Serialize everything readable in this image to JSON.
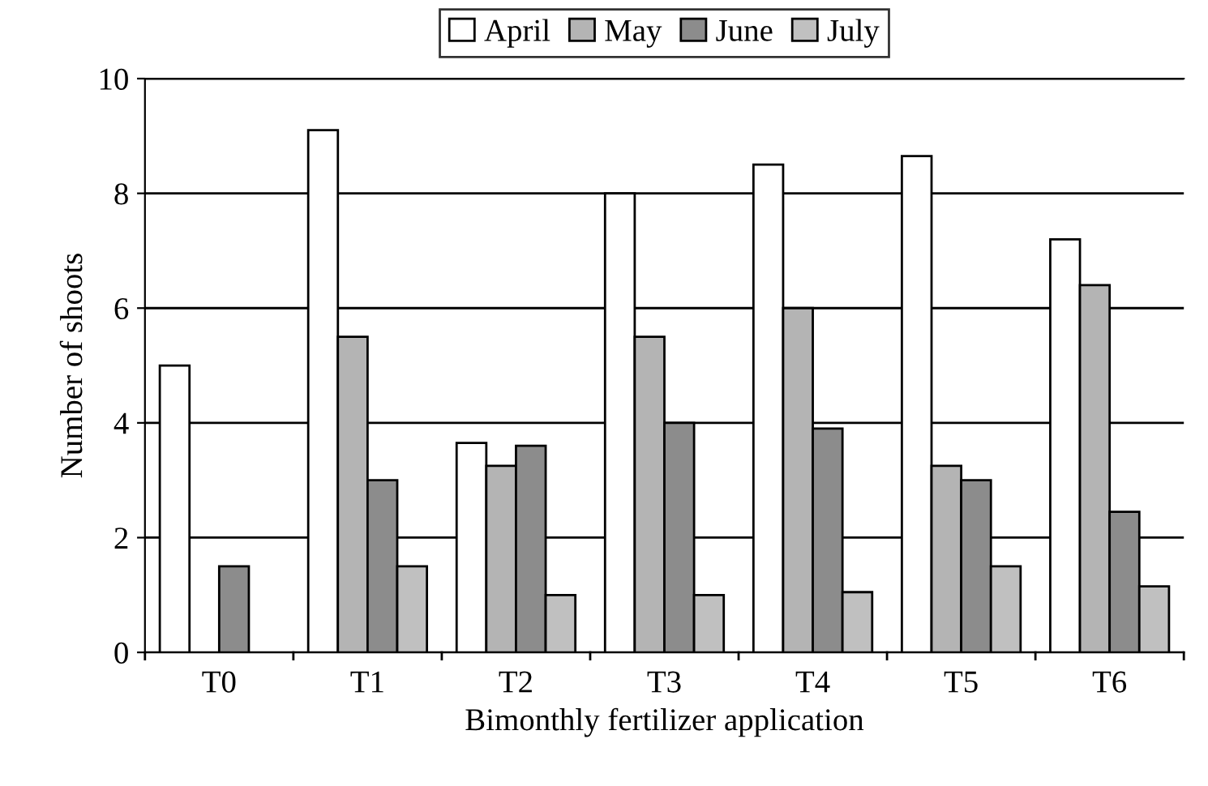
{
  "chart_data": {
    "type": "bar",
    "xlabel": "Bimonthly fertilizer application",
    "ylabel": "Number of shoots",
    "categories": [
      "T0",
      "T1",
      "T2",
      "T3",
      "T4",
      "T5",
      "T6"
    ],
    "series": [
      {
        "name": "April",
        "color": "#ffffff",
        "values": [
          5.0,
          9.1,
          3.65,
          8.0,
          8.5,
          8.65,
          7.2
        ]
      },
      {
        "name": "May",
        "color": "#b4b4b4",
        "values": [
          null,
          5.5,
          3.25,
          5.5,
          6.0,
          3.25,
          6.4
        ]
      },
      {
        "name": "June",
        "color": "#8c8c8c",
        "values": [
          1.5,
          3.0,
          3.6,
          4.0,
          3.9,
          3.0,
          2.45
        ]
      },
      {
        "name": "July",
        "color": "#c0c0c0",
        "values": [
          null,
          1.5,
          1.0,
          1.0,
          1.05,
          1.5,
          1.15
        ]
      }
    ],
    "ylim": [
      0,
      10
    ],
    "yticks": [
      0,
      2,
      4,
      6,
      8,
      10
    ],
    "grid": "y",
    "legend": "top"
  }
}
